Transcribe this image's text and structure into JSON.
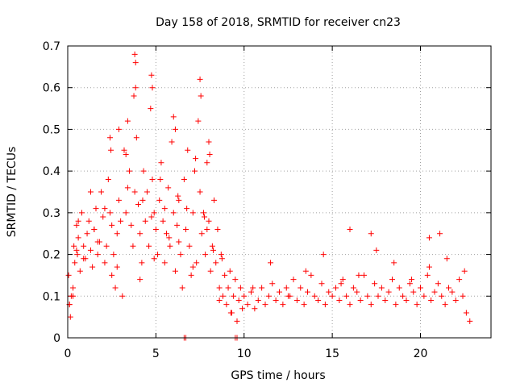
{
  "chart_data": {
    "type": "scatter",
    "title": "Day 158 of 2018, SRMTID for receiver cn23",
    "xlabel": "GPS time / hours",
    "ylabel": "SRMTID / TECUs",
    "xlim": [
      0,
      24
    ],
    "ylim": [
      0,
      0.7
    ],
    "xticks": [
      0,
      5,
      10,
      15,
      20
    ],
    "xtick_labels": [
      "0",
      "5",
      "10",
      "15",
      "20"
    ],
    "yticks": [
      0,
      0.1,
      0.2,
      0.3,
      0.4,
      0.5,
      0.6,
      0.7
    ],
    "ytick_labels": [
      "0",
      "0.1",
      "0.2",
      "0.3",
      "0.4",
      "0.5",
      "0.6",
      "0.7"
    ],
    "grid": true,
    "marker": "+",
    "color": "#ff0000",
    "series": [
      {
        "name": "SRMTID",
        "x": [
          0.05,
          0.1,
          0.15,
          0.2,
          0.3,
          0.35,
          0.4,
          0.5,
          0.55,
          0.6,
          0.7,
          0.8,
          0.9,
          1.0,
          1.1,
          1.2,
          1.3,
          1.4,
          1.5,
          1.6,
          1.7,
          1.8,
          1.9,
          2.0,
          2.1,
          2.2,
          2.3,
          2.4,
          2.5,
          2.6,
          2.7,
          2.8,
          2.9,
          3.0,
          3.1,
          3.2,
          3.3,
          3.4,
          3.5,
          3.6,
          3.7,
          3.8,
          3.85,
          3.9,
          4.0,
          4.1,
          4.2,
          4.3,
          4.4,
          4.5,
          4.6,
          4.7,
          4.8,
          4.9,
          5.0,
          5.1,
          5.2,
          5.3,
          5.4,
          5.5,
          5.6,
          5.7,
          5.8,
          5.9,
          6.0,
          6.1,
          6.2,
          6.3,
          6.4,
          6.5,
          6.6,
          6.7,
          6.8,
          6.9,
          7.0,
          7.1,
          7.2,
          7.3,
          7.4,
          7.5,
          7.6,
          7.7,
          7.8,
          7.9,
          8.0,
          8.1,
          8.2,
          8.3,
          8.4,
          8.5,
          8.6,
          8.7,
          8.8,
          8.9,
          9.0,
          9.1,
          9.2,
          9.3,
          9.4,
          9.5,
          9.6,
          9.7,
          9.8,
          9.9,
          10.0,
          10.2,
          10.4,
          10.6,
          10.8,
          11.0,
          11.2,
          11.4,
          11.6,
          11.8,
          12.0,
          12.2,
          12.4,
          12.6,
          12.8,
          13.0,
          13.2,
          13.4,
          13.6,
          13.8,
          14.0,
          14.2,
          14.4,
          14.6,
          14.8,
          15.0,
          15.2,
          15.4,
          15.6,
          15.8,
          16.0,
          16.2,
          16.4,
          16.6,
          16.8,
          17.0,
          17.2,
          17.4,
          17.6,
          17.8,
          18.0,
          18.2,
          18.4,
          18.6,
          18.8,
          19.0,
          19.2,
          19.4,
          19.6,
          19.8,
          20.0,
          20.2,
          20.4,
          20.6,
          20.8,
          21.0,
          21.2,
          21.4,
          21.6,
          21.8,
          22.0,
          22.2,
          22.4,
          22.6,
          22.8,
          0.1,
          0.3,
          0.6,
          0.9,
          1.3,
          1.7,
          2.1,
          2.5,
          2.9,
          3.3,
          3.75,
          4.25,
          4.75,
          5.25,
          5.75,
          6.25,
          6.75,
          7.25,
          7.75,
          8.25,
          8.75,
          9.25,
          6.6,
          6.7,
          9.5,
          9.6,
          3.8,
          3.85,
          4.75,
          4.8,
          7.5,
          7.55,
          2.4,
          2.45,
          6.0,
          6.1,
          8.0,
          8.05,
          16.0,
          17.2,
          20.5,
          21.1,
          0.5,
          1.5,
          2.8,
          3.4,
          4.1,
          4.9,
          5.5,
          6.3,
          7.1,
          7.9,
          8.6,
          10.5,
          11.5,
          12.5,
          13.5,
          14.5,
          15.5,
          16.5,
          17.5,
          18.5,
          19.5,
          20.5,
          21.5,
          22.5
        ],
        "y": [
          0.15,
          0.08,
          0.05,
          0.1,
          0.12,
          0.22,
          0.18,
          0.27,
          0.2,
          0.24,
          0.16,
          0.3,
          0.22,
          0.19,
          0.25,
          0.28,
          0.21,
          0.17,
          0.26,
          0.31,
          0.2,
          0.23,
          0.35,
          0.29,
          0.18,
          0.22,
          0.38,
          0.3,
          0.15,
          0.2,
          0.12,
          0.25,
          0.33,
          0.28,
          0.1,
          0.45,
          0.3,
          0.52,
          0.4,
          0.27,
          0.22,
          0.35,
          0.6,
          0.48,
          0.32,
          0.25,
          0.18,
          0.4,
          0.28,
          0.35,
          0.22,
          0.55,
          0.38,
          0.3,
          0.26,
          0.2,
          0.33,
          0.42,
          0.28,
          0.18,
          0.25,
          0.36,
          0.22,
          0.47,
          0.3,
          0.16,
          0.27,
          0.33,
          0.2,
          0.12,
          0.38,
          0.26,
          0.45,
          0.22,
          0.15,
          0.3,
          0.4,
          0.18,
          0.52,
          0.35,
          0.25,
          0.3,
          0.2,
          0.42,
          0.28,
          0.16,
          0.22,
          0.33,
          0.18,
          0.26,
          0.12,
          0.2,
          0.1,
          0.15,
          0.08,
          0.12,
          0.16,
          0.06,
          0.1,
          0.14,
          0.04,
          0.09,
          0.12,
          0.07,
          0.1,
          0.08,
          0.11,
          0.07,
          0.09,
          0.12,
          0.08,
          0.1,
          0.13,
          0.09,
          0.11,
          0.08,
          0.12,
          0.1,
          0.14,
          0.09,
          0.12,
          0.08,
          0.11,
          0.15,
          0.1,
          0.09,
          0.13,
          0.08,
          0.11,
          0.1,
          0.12,
          0.09,
          0.14,
          0.1,
          0.08,
          0.12,
          0.11,
          0.09,
          0.15,
          0.1,
          0.08,
          0.13,
          0.1,
          0.12,
          0.09,
          0.11,
          0.14,
          0.08,
          0.12,
          0.1,
          0.09,
          0.13,
          0.11,
          0.08,
          0.12,
          0.1,
          0.15,
          0.09,
          0.11,
          0.13,
          0.1,
          0.08,
          0.12,
          0.11,
          0.09,
          0.14,
          0.1,
          0.06,
          0.04,
          0.08,
          0.1,
          0.28,
          0.19,
          0.35,
          0.23,
          0.31,
          0.27,
          0.5,
          0.44,
          0.58,
          0.33,
          0.29,
          0.38,
          0.24,
          0.34,
          0.31,
          0.43,
          0.29,
          0.21,
          0.19,
          0.06,
          0.0,
          0.0,
          0.0,
          0.0,
          0.68,
          0.66,
          0.63,
          0.6,
          0.62,
          0.58,
          0.48,
          0.45,
          0.53,
          0.5,
          0.47,
          0.44,
          0.26,
          0.25,
          0.24,
          0.25,
          0.21,
          0.26,
          0.17,
          0.36,
          0.14,
          0.19,
          0.31,
          0.23,
          0.17,
          0.26,
          0.09,
          0.12,
          0.18,
          0.1,
          0.16,
          0.2,
          0.13,
          0.15,
          0.21,
          0.18,
          0.14,
          0.17,
          0.19,
          0.16
        ]
      }
    ]
  }
}
